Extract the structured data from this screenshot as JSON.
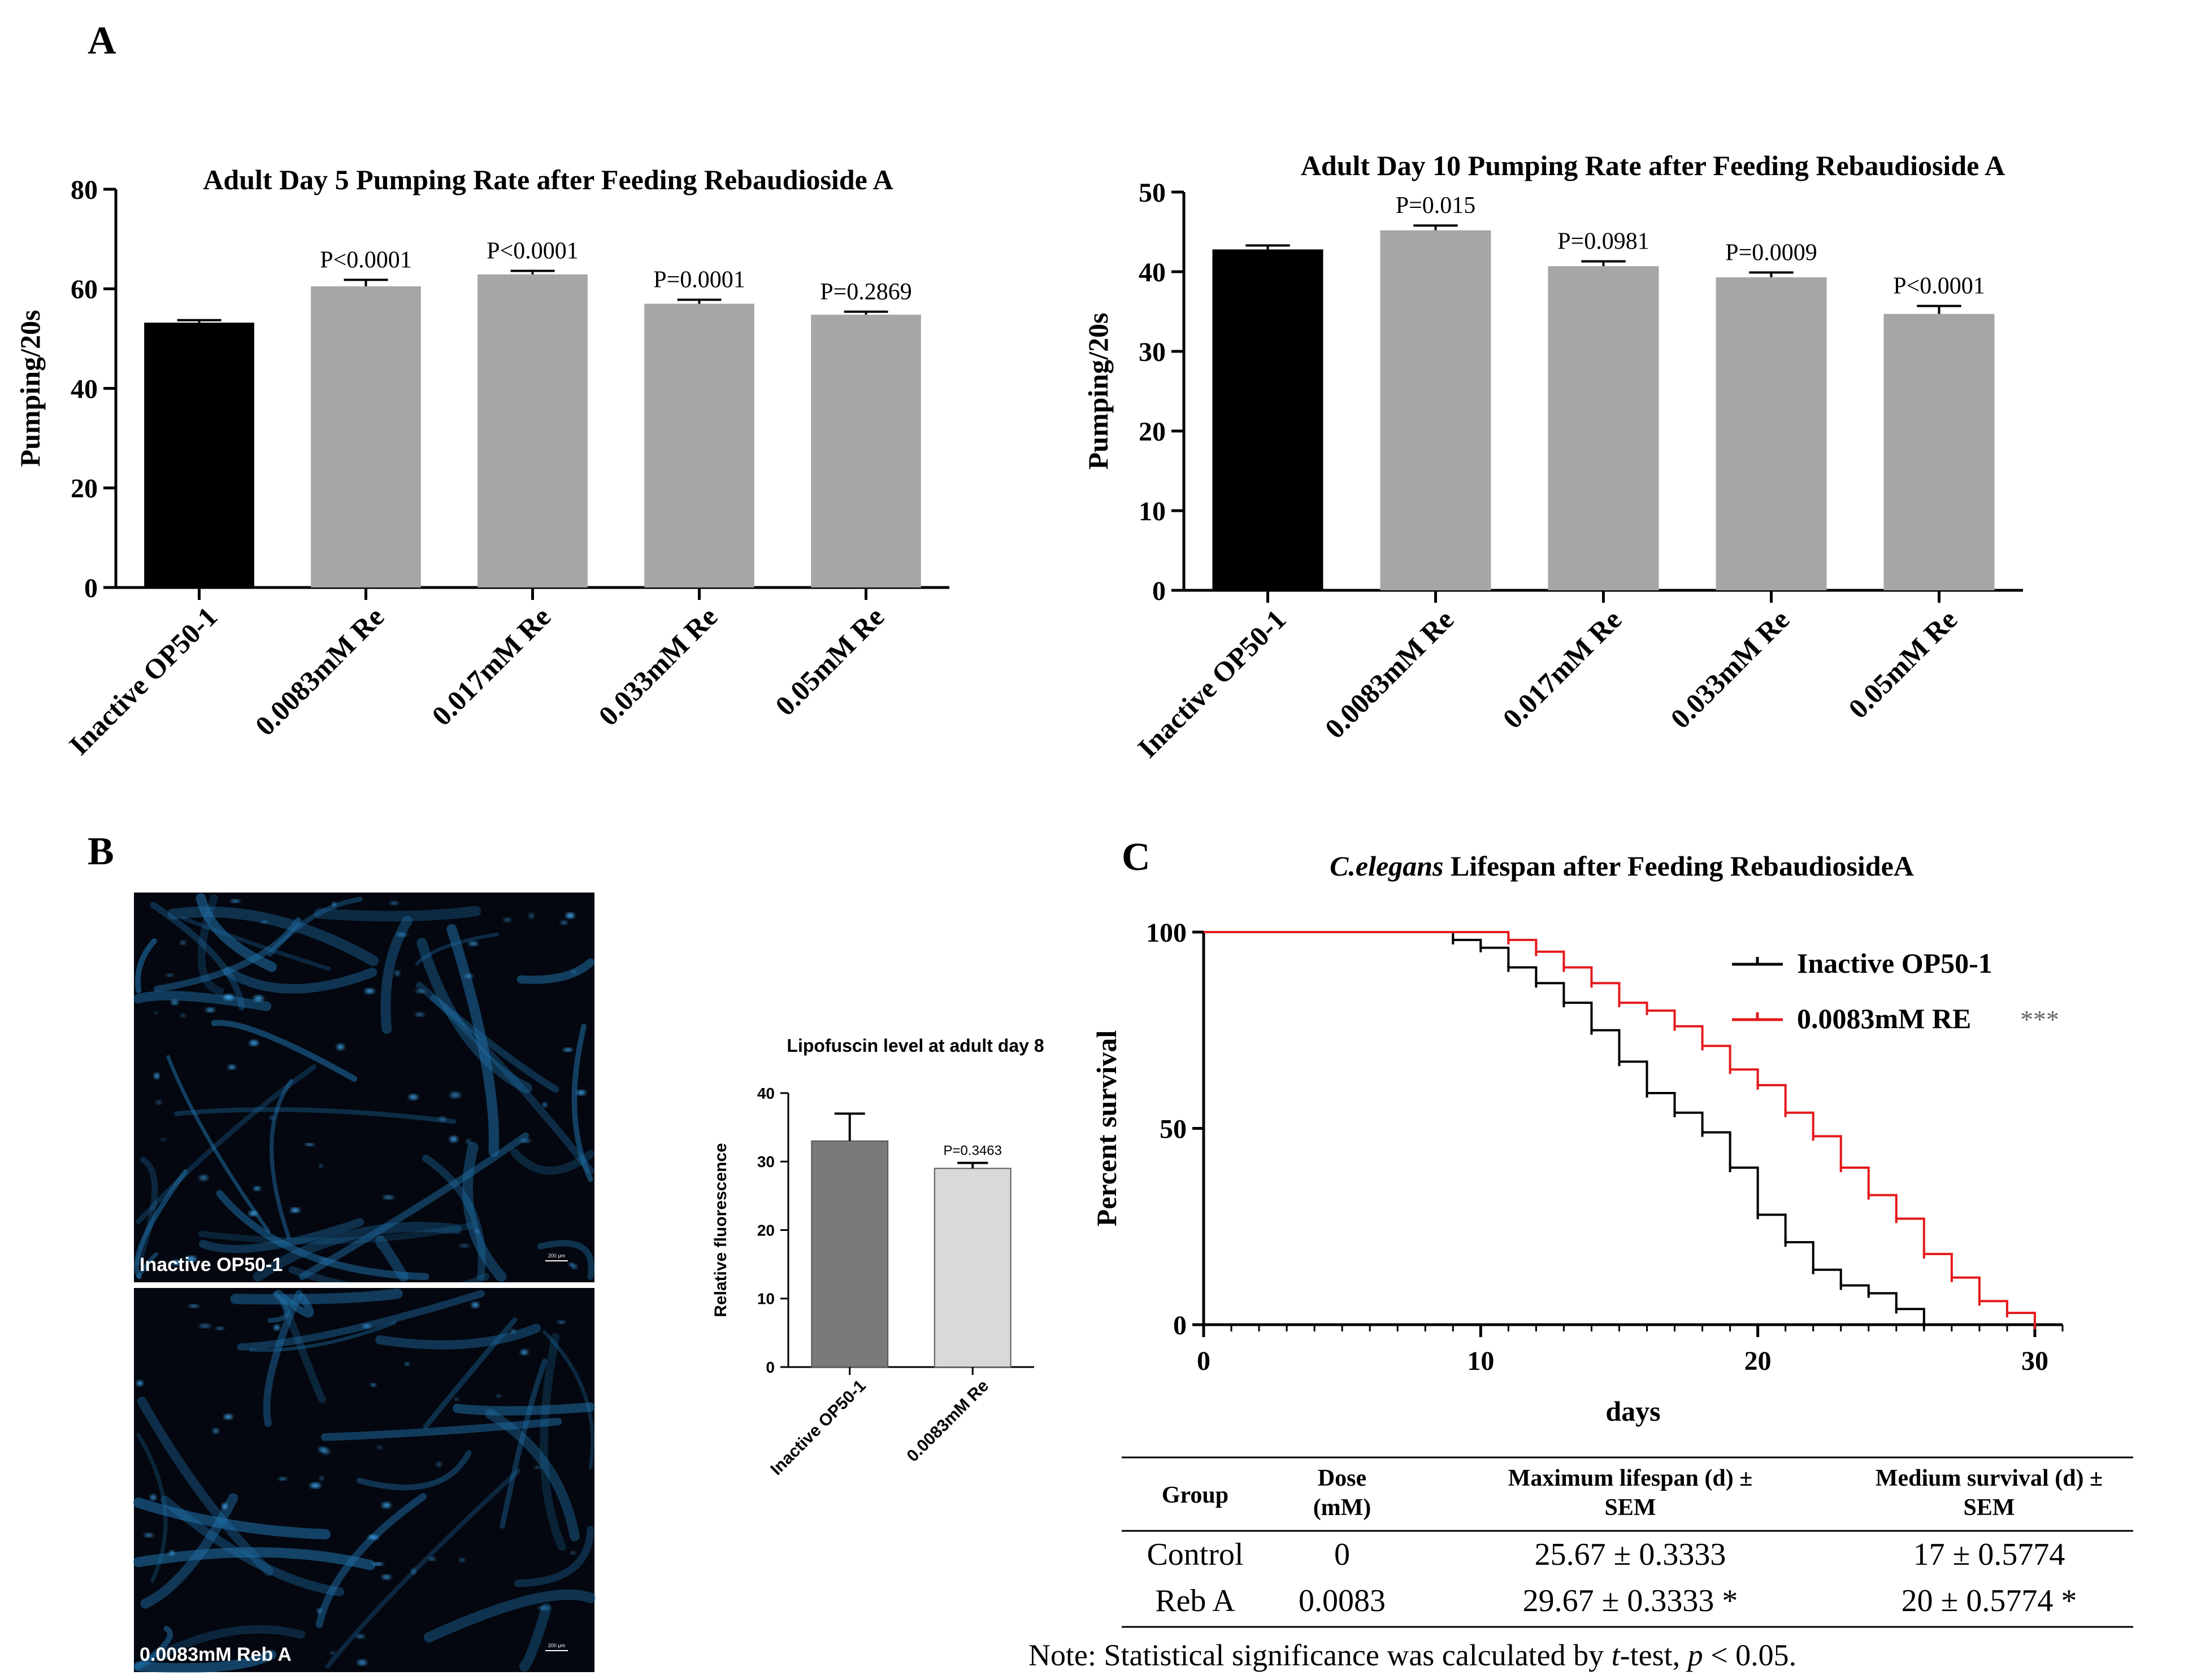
{
  "panel_labels": {
    "a": "A",
    "b": "B",
    "c": "C"
  },
  "colors": {
    "control": "#000000",
    "treated": "#a6a6a8",
    "lipo_control": "#7a7a7a",
    "lipo_treated": "#d9d9d9",
    "survival_control": "#000000",
    "survival_treated": "#e41a1c",
    "micrograph_bg": "#04070f",
    "worm": "#1f6fa8"
  },
  "micrographs": [
    {
      "label": "Inactive OP50-1",
      "scale": "200 μm"
    },
    {
      "label": "0.0083mM Reb A",
      "scale": "200 μm"
    }
  ],
  "chart_data": [
    {
      "id": "day5",
      "type": "bar",
      "title": "Adult Day 5 Pumping Rate after Feeding Rebaudioside A",
      "xlabel": "",
      "ylabel": "Pumping/20s",
      "ylim": [
        0,
        80
      ],
      "yticks": [
        0,
        20,
        40,
        60,
        80
      ],
      "categories": [
        "Inactive OP50-1",
        "0.0083mM Re",
        "0.017mM Re",
        "0.033mM Re",
        "0.05mM Re"
      ],
      "values": [
        53.2,
        60.5,
        62.9,
        57.0,
        54.8
      ],
      "errors": [
        0.5,
        1.3,
        0.7,
        0.8,
        0.6
      ],
      "annotations": [
        "",
        "P<0.0001",
        "P<0.0001",
        "P=0.0001",
        "P=0.2869"
      ]
    },
    {
      "id": "day10",
      "type": "bar",
      "title": "Adult Day 10 Pumping Rate after Feeding Rebaudioside A",
      "xlabel": "",
      "ylabel": "Pumping/20s",
      "ylim": [
        0,
        50
      ],
      "yticks": [
        0,
        10,
        20,
        30,
        40,
        50
      ],
      "categories": [
        "Inactive OP50-1",
        "0.0083mM Re",
        "0.017mM Re",
        "0.033mM Re",
        "0.05mM Re"
      ],
      "values": [
        42.8,
        45.2,
        40.7,
        39.3,
        34.7
      ],
      "errors": [
        0.5,
        0.6,
        0.6,
        0.6,
        1.0
      ],
      "annotations": [
        "",
        "P=0.015",
        "P=0.0981",
        "P=0.0009",
        "P<0.0001"
      ]
    },
    {
      "id": "lipofuscin",
      "type": "bar",
      "title": "Lipofuscin level at adult day 8",
      "xlabel": "",
      "ylabel": "Relative fluorescence",
      "ylim": [
        0,
        40
      ],
      "yticks": [
        0,
        10,
        20,
        30,
        40
      ],
      "categories": [
        "Inactive OP50-1",
        "0.0083mM Re"
      ],
      "values": [
        33.0,
        29.0
      ],
      "errors": [
        4.0,
        0.8
      ],
      "annotations": [
        "",
        "P=0.3463"
      ]
    },
    {
      "id": "lifespan",
      "type": "line",
      "title_italic": "C.elegans",
      "title_rest": " Lifespan after Feeding RebaudiosideA",
      "xlabel": "days",
      "ylabel": "Percent survival",
      "xlim": [
        0,
        31
      ],
      "ylim": [
        0,
        100
      ],
      "xticks": [
        0,
        10,
        20,
        30
      ],
      "yticks": [
        0,
        50,
        100
      ],
      "series": [
        {
          "name": "Inactive OP50-1",
          "x": [
            9,
            10,
            11,
            12,
            13,
            14,
            15,
            16,
            17,
            18,
            19,
            20,
            21,
            22,
            23,
            24,
            25,
            26
          ],
          "y": [
            98,
            96,
            91,
            87,
            82,
            75,
            67,
            59,
            54,
            49,
            40,
            28,
            21,
            14,
            10,
            8,
            4,
            0
          ]
        },
        {
          "name": "0.0083mM RE",
          "marker": "***",
          "x": [
            11,
            12,
            13,
            14,
            15,
            16,
            17,
            18,
            19,
            20,
            21,
            22,
            23,
            24,
            25,
            26,
            27,
            28,
            29,
            30
          ],
          "y": [
            98,
            95,
            91,
            87,
            82,
            80,
            76,
            71,
            65,
            61,
            54,
            48,
            40,
            33,
            27,
            18,
            12,
            6,
            3,
            0
          ]
        }
      ]
    }
  ],
  "table": {
    "headers": [
      "Group",
      "Dose\n(mM)",
      "Maximum lifespan (d) ±\nSEM",
      "Medium survival (d) ±\nSEM"
    ],
    "rows": [
      [
        "Control",
        "0",
        "25.67 ± 0.3333",
        "17 ± 0.5774"
      ],
      [
        "Reb A",
        "0.0083",
        "29.67 ± 0.3333 *",
        "20 ± 0.5774 *"
      ]
    ],
    "note_prefix": "Note: Statistical significance was calculated by ",
    "note_t": "t",
    "note_mid": "-test, ",
    "note_p": "p",
    "note_end": " < 0.05."
  }
}
